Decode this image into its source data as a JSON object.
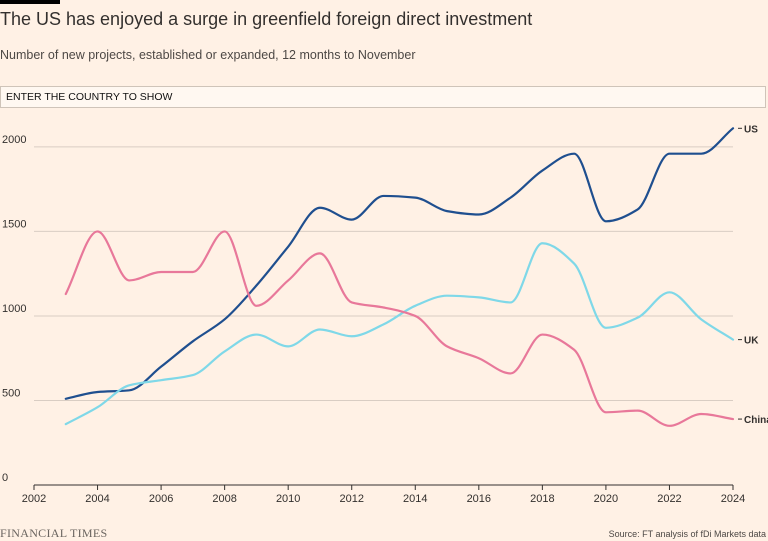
{
  "header": {
    "title": "The US has enjoyed a surge in greenfield foreign direct investment",
    "subtitle": "Number of new projects, established or expanded, 12 months to November"
  },
  "search": {
    "placeholder": "ENTER THE COUNTRY TO SHOW"
  },
  "footer": {
    "brand": "FINANCIAL TIMES",
    "source": "Source: FT analysis of fDi Markets data"
  },
  "colors": {
    "background": "#fff1e5",
    "gridline": "#d9cdc3",
    "axis": "#33302e",
    "us": "#1f4f8f",
    "uk": "#7fd8e8",
    "china": "#e8789a"
  },
  "chart_data": {
    "type": "line",
    "title": "The US has enjoyed a surge in greenfield foreign direct investment",
    "xlabel": "",
    "ylabel": "",
    "xlim": [
      2002,
      2024
    ],
    "ylim": [
      0,
      2100
    ],
    "xticks": [
      "2002",
      "2004",
      "2006",
      "2008",
      "2010",
      "2012",
      "2014",
      "2016",
      "2018",
      "2020",
      "2022",
      "2024"
    ],
    "yticks": [
      "0",
      "500",
      "1000",
      "1500",
      "2000"
    ],
    "x": [
      2003,
      2004,
      2005,
      2006,
      2007,
      2008,
      2009,
      2010,
      2011,
      2012,
      2013,
      2014,
      2015,
      2016,
      2017,
      2018,
      2019,
      2020,
      2021,
      2022,
      2023,
      2024
    ],
    "series": [
      {
        "name": "US",
        "color": "#1f4f8f",
        "values": [
          510,
          550,
          560,
          700,
          850,
          980,
          1180,
          1410,
          1640,
          1570,
          1710,
          1700,
          1620,
          1600,
          1700,
          1860,
          1960,
          1560,
          1630,
          1960,
          1960,
          2110
        ]
      },
      {
        "name": "UK",
        "color": "#7fd8e8",
        "values": [
          360,
          460,
          590,
          620,
          650,
          790,
          890,
          820,
          920,
          880,
          950,
          1060,
          1120,
          1110,
          1080,
          1430,
          1310,
          930,
          990,
          1140,
          980,
          860
        ]
      },
      {
        "name": "China",
        "color": "#e8789a",
        "values": [
          1130,
          1500,
          1210,
          1260,
          1260,
          1500,
          1060,
          1210,
          1370,
          1080,
          1050,
          1000,
          820,
          750,
          660,
          890,
          800,
          430,
          440,
          350,
          420,
          390
        ]
      }
    ]
  }
}
